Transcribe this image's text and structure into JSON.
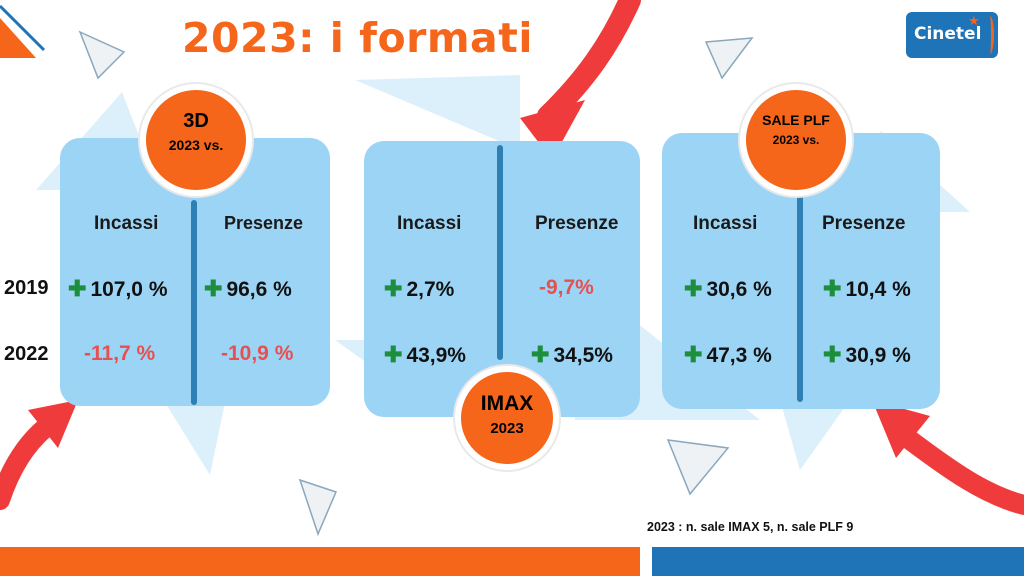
{
  "title": "2023: i formati",
  "logo": {
    "text": "Cinetel"
  },
  "row_labels": [
    "2019",
    "2022"
  ],
  "panels": {
    "3d": {
      "badge_line1": "3D",
      "badge_line2": "2023 vs.",
      "col1": "Incassi",
      "col2": "Presenze",
      "r1c1": "107,0 %",
      "r1c2": "96,6 %",
      "r2c1": "-11,7 %",
      "r2c2": "-10,9 %"
    },
    "imax": {
      "badge_line1": "IMAX",
      "badge_line2": "2023",
      "col1": "Incassi",
      "col2": "Presenze",
      "r1c1": "2,7%",
      "r1c2": "-9,7%",
      "r2c1": "43,9%",
      "r2c2": "34,5%"
    },
    "plf": {
      "badge_line1": "SALE PLF",
      "badge_line2": "2023 vs.",
      "col1": "Incassi",
      "col2": "Presenze",
      "r1c1": "30,6 %",
      "r1c2": "10,4 %",
      "r2c1": "47,3 %",
      "r2c2": "30,9 %"
    }
  },
  "footnote": "2023 : n. sale IMAX 5, n. sale PLF 9",
  "colors": {
    "accent": "#f5651a",
    "panel": "#9cd4f5",
    "positive": "#1d8f3c",
    "negative": "#e84f4f",
    "brand_blue": "#1f73b7"
  }
}
